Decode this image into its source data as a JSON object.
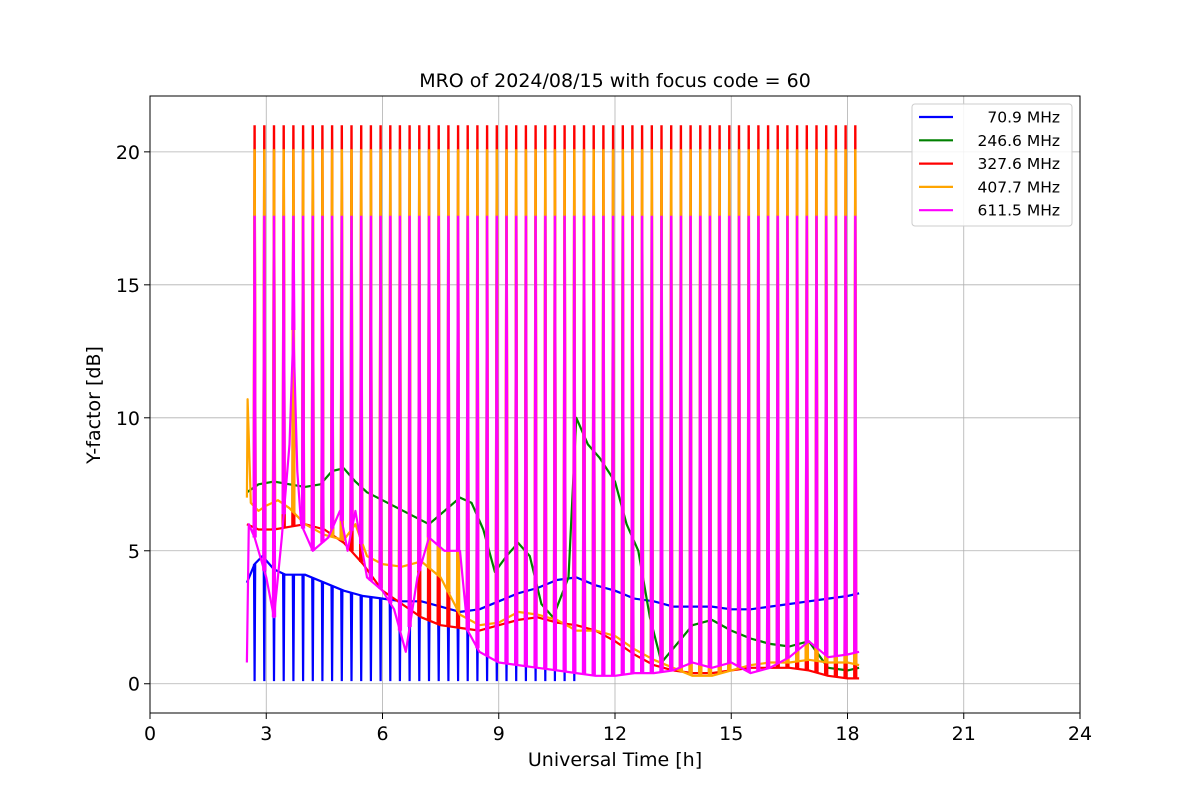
{
  "chart_data": {
    "type": "line",
    "title": "MRO of 2024/08/15 with focus code = 60",
    "xlabel": "Universal Time [h]",
    "ylabel": "Y-factor [dB]",
    "xlim": [
      0,
      24
    ],
    "ylim": [
      -1.1,
      22.1
    ],
    "xticks": [
      0,
      3,
      6,
      9,
      12,
      15,
      18,
      21,
      24
    ],
    "yticks": [
      0,
      5,
      10,
      15,
      20
    ],
    "grid": true,
    "legend_position": "top-right",
    "calibration_pulses": {
      "start_h": 2.7,
      "end_h": 18.25,
      "spacing_h": 0.25,
      "peak_db": {
        "327.6 MHz": 21.0,
        "407.7 MHz": 20.1,
        "611.5 MHz": 17.6
      },
      "dip_db_70_9_MHz": {
        "start_h": 2.7,
        "end_h": 11.0,
        "value": 0.1
      }
    },
    "series": [
      {
        "name": "70.9 MHz",
        "color": "#0000ff",
        "x": [
          2.5,
          2.7,
          2.9,
          3.2,
          3.5,
          4.0,
          4.5,
          5.0,
          5.5,
          6.0,
          6.5,
          7.0,
          7.5,
          8.0,
          8.5,
          9.0,
          9.5,
          10.0,
          10.5,
          11.0,
          11.5,
          12.0,
          12.5,
          13.0,
          13.5,
          14.0,
          14.5,
          15.0,
          15.5,
          16.0,
          16.5,
          17.0,
          17.5,
          18.0,
          18.3
        ],
        "values": [
          3.8,
          4.5,
          4.8,
          4.3,
          4.1,
          4.1,
          3.8,
          3.5,
          3.3,
          3.2,
          3.1,
          3.1,
          2.9,
          2.7,
          2.8,
          3.1,
          3.4,
          3.6,
          3.9,
          4.0,
          3.7,
          3.5,
          3.2,
          3.1,
          2.9,
          2.9,
          2.9,
          2.8,
          2.8,
          2.9,
          3.0,
          3.1,
          3.2,
          3.3,
          3.4
        ]
      },
      {
        "name": "246.6 MHz",
        "color": "#008000",
        "x": [
          2.5,
          2.8,
          3.2,
          3.6,
          4.0,
          4.4,
          4.7,
          5.0,
          5.3,
          5.6,
          6.0,
          6.4,
          6.8,
          7.2,
          7.6,
          8.0,
          8.3,
          8.6,
          8.9,
          9.2,
          9.5,
          9.8,
          10.1,
          10.4,
          10.8,
          10.9,
          11.0,
          11.3,
          11.6,
          12.0,
          12.3,
          12.6,
          12.9,
          13.2,
          13.6,
          14.0,
          14.5,
          15.0,
          15.5,
          16.0,
          16.5,
          17.0,
          17.5,
          18.0,
          18.3
        ],
        "values": [
          7.2,
          7.5,
          7.6,
          7.5,
          7.4,
          7.5,
          8.0,
          8.1,
          7.6,
          7.2,
          6.9,
          6.6,
          6.3,
          6.0,
          6.5,
          7.0,
          6.8,
          5.8,
          4.2,
          4.8,
          5.3,
          4.8,
          3.0,
          2.5,
          4.0,
          7.0,
          10.0,
          9.0,
          8.5,
          7.6,
          6.0,
          5.0,
          2.5,
          0.8,
          1.5,
          2.2,
          2.4,
          2.0,
          1.7,
          1.5,
          1.4,
          1.6,
          0.6,
          0.5,
          0.6
        ]
      },
      {
        "name": "327.6 MHz",
        "color": "#ff0000",
        "x": [
          2.5,
          2.8,
          3.2,
          3.6,
          4.0,
          4.5,
          5.0,
          5.5,
          6.0,
          6.5,
          7.0,
          7.5,
          8.0,
          8.5,
          9.0,
          9.5,
          10.0,
          10.5,
          11.0,
          11.5,
          12.0,
          12.5,
          13.0,
          13.5,
          14.0,
          14.5,
          15.0,
          15.5,
          16.0,
          16.5,
          17.0,
          17.5,
          18.0,
          18.3
        ],
        "values": [
          6.0,
          5.8,
          5.8,
          5.9,
          6.0,
          5.8,
          5.3,
          4.5,
          3.5,
          3.0,
          2.5,
          2.2,
          2.1,
          2.0,
          2.2,
          2.4,
          2.5,
          2.3,
          2.2,
          2.0,
          1.6,
          1.1,
          0.7,
          0.5,
          0.4,
          0.4,
          0.5,
          0.6,
          0.6,
          0.6,
          0.5,
          0.3,
          0.2,
          0.2
        ]
      },
      {
        "name": "407.7 MHz",
        "color": "#ffa500",
        "x": [
          2.5,
          2.52,
          2.6,
          2.8,
          3.0,
          3.3,
          3.6,
          4.0,
          4.5,
          5.0,
          5.3,
          5.6,
          6.0,
          6.5,
          7.0,
          7.5,
          8.0,
          8.5,
          9.0,
          9.5,
          10.0,
          10.5,
          11.0,
          11.5,
          12.0,
          12.5,
          13.0,
          13.5,
          14.0,
          14.5,
          15.0,
          15.5,
          16.0,
          16.5,
          17.0,
          17.5,
          18.0,
          18.3
        ],
        "values": [
          7.0,
          10.7,
          6.8,
          6.5,
          6.7,
          6.9,
          6.6,
          6.0,
          5.6,
          5.4,
          6.0,
          4.8,
          4.5,
          4.4,
          4.6,
          4.0,
          2.6,
          2.2,
          2.3,
          2.7,
          2.6,
          2.4,
          2.0,
          2.0,
          1.8,
          1.3,
          0.9,
          0.6,
          0.3,
          0.3,
          0.5,
          0.7,
          0.8,
          0.8,
          0.9,
          0.8,
          0.8,
          0.7
        ]
      },
      {
        "name": "611.5 MHz",
        "color": "#ff00ff",
        "x": [
          2.5,
          2.55,
          2.7,
          3.0,
          3.2,
          3.4,
          3.6,
          3.7,
          3.8,
          3.9,
          4.2,
          4.6,
          4.9,
          5.1,
          5.3,
          5.6,
          6.0,
          6.3,
          6.6,
          6.9,
          7.2,
          7.6,
          8.0,
          8.2,
          8.5,
          9.0,
          9.5,
          10.0,
          10.5,
          11.0,
          11.5,
          12.0,
          12.5,
          13.0,
          13.5,
          14.0,
          14.5,
          15.0,
          15.5,
          16.0,
          16.5,
          17.0,
          17.5,
          18.0,
          18.3
        ],
        "values": [
          0.8,
          6.0,
          5.5,
          4.0,
          2.5,
          5.5,
          9.0,
          13.3,
          8.0,
          6.0,
          5.0,
          5.5,
          6.5,
          5.0,
          6.5,
          4.0,
          3.5,
          2.8,
          1.2,
          4.0,
          5.5,
          5.0,
          5.0,
          2.0,
          1.2,
          0.8,
          0.7,
          0.6,
          0.5,
          0.4,
          0.3,
          0.3,
          0.4,
          0.4,
          0.5,
          0.8,
          0.6,
          0.8,
          0.4,
          0.6,
          1.0,
          1.6,
          1.0,
          1.1,
          1.2
        ]
      }
    ]
  }
}
